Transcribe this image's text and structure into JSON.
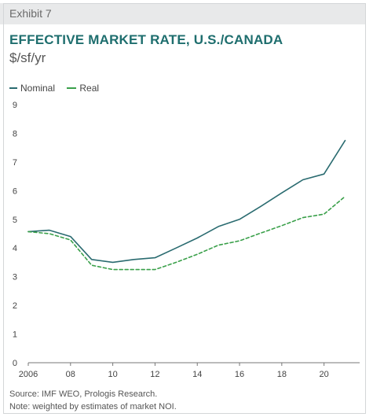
{
  "header": {
    "exhibit": "Exhibit 7",
    "title": "EFFECTIVE MARKET RATE, U.S./CANADA",
    "subtitle": "$/sf/yr"
  },
  "footer": {
    "source": "Source: IMF WEO, Prologis Research.",
    "note": "Note: weighted by estimates of market NOI."
  },
  "colors": {
    "title": "#1e6e6e",
    "nominal": "#2a6b70",
    "real": "#3aa04a",
    "exhibit_bar": "#e8e9ea"
  },
  "chart_data": {
    "type": "line",
    "title": "EFFECTIVE MARKET RATE, U.S./CANADA",
    "subtitle": "$/sf/yr",
    "xlabel": "",
    "ylabel": "",
    "x": [
      2006,
      2007,
      2008,
      2009,
      2010,
      2011,
      2012,
      2013,
      2014,
      2015,
      2016,
      2017,
      2018,
      2019,
      2020,
      2021
    ],
    "x_ticks": [
      2006,
      2008,
      2010,
      2012,
      2014,
      2016,
      2018,
      2020
    ],
    "x_tick_labels": [
      "2006",
      "08",
      "10",
      "12",
      "14",
      "16",
      "18",
      "20"
    ],
    "xlim": [
      2006,
      2021.5
    ],
    "ylim": [
      0,
      9
    ],
    "y_ticks": [
      0,
      1,
      2,
      3,
      4,
      5,
      6,
      7,
      8,
      9
    ],
    "series": [
      {
        "name": "Nominal",
        "style": "solid",
        "values": [
          4.57,
          4.62,
          4.4,
          3.6,
          3.5,
          3.6,
          3.66,
          4.0,
          4.35,
          4.75,
          5.0,
          5.45,
          5.92,
          6.38,
          6.58,
          7.75
        ]
      },
      {
        "name": "Real",
        "style": "dashed",
        "values": [
          4.57,
          4.5,
          4.28,
          3.4,
          3.25,
          3.25,
          3.25,
          3.5,
          3.78,
          4.1,
          4.25,
          4.52,
          4.78,
          5.06,
          5.18,
          5.8
        ]
      }
    ],
    "legend": "top-left",
    "grid": false
  }
}
